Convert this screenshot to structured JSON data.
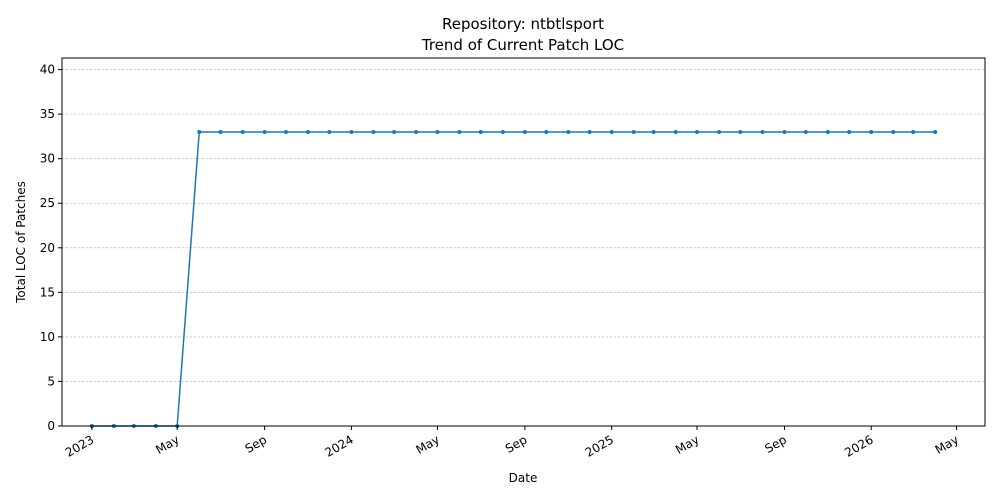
{
  "chart_data": {
    "type": "line",
    "title_line1": "Repository: ntbtlsport",
    "title_line2": "Trend of Current Patch LOC",
    "xlabel": "Date",
    "ylabel": "Total LOC of Patches",
    "ylim": [
      0,
      41.3
    ],
    "y_ticks": [
      0,
      5,
      10,
      15,
      20,
      25,
      30,
      35,
      40
    ],
    "grid": "y-dashed",
    "x_ticks": [
      {
        "date": "2023-01-01",
        "label": "2023"
      },
      {
        "date": "2023-05-01",
        "label": "May"
      },
      {
        "date": "2023-09-01",
        "label": "Sep"
      },
      {
        "date": "2024-01-01",
        "label": "2024"
      },
      {
        "date": "2024-05-01",
        "label": "May"
      },
      {
        "date": "2024-09-01",
        "label": "Sep"
      },
      {
        "date": "2025-01-01",
        "label": "2025"
      },
      {
        "date": "2025-05-01",
        "label": "May"
      },
      {
        "date": "2025-09-01",
        "label": "Sep"
      },
      {
        "date": "2026-01-01",
        "label": "2026"
      },
      {
        "date": "2026-05-01",
        "label": "May"
      }
    ],
    "xlim": [
      "2022-11-20",
      "2026-06-10"
    ],
    "series": [
      {
        "color": "#1f77b4",
        "points": [
          {
            "x": "2023-01-01",
            "y": 0
          },
          {
            "x": "2023-02-01",
            "y": 0
          },
          {
            "x": "2023-03-01",
            "y": 0
          },
          {
            "x": "2023-04-01",
            "y": 0
          },
          {
            "x": "2023-05-01",
            "y": 0
          },
          {
            "x": "2023-06-01",
            "y": 33
          },
          {
            "x": "2023-07-01",
            "y": 33
          },
          {
            "x": "2023-08-01",
            "y": 33
          },
          {
            "x": "2023-09-01",
            "y": 33
          },
          {
            "x": "2023-10-01",
            "y": 33
          },
          {
            "x": "2023-11-01",
            "y": 33
          },
          {
            "x": "2023-12-01",
            "y": 33
          },
          {
            "x": "2024-01-01",
            "y": 33
          },
          {
            "x": "2024-02-01",
            "y": 33
          },
          {
            "x": "2024-03-01",
            "y": 33
          },
          {
            "x": "2024-04-01",
            "y": 33
          },
          {
            "x": "2024-05-01",
            "y": 33
          },
          {
            "x": "2024-06-01",
            "y": 33
          },
          {
            "x": "2024-07-01",
            "y": 33
          },
          {
            "x": "2024-08-01",
            "y": 33
          },
          {
            "x": "2024-09-01",
            "y": 33
          },
          {
            "x": "2024-10-01",
            "y": 33
          },
          {
            "x": "2024-11-01",
            "y": 33
          },
          {
            "x": "2024-12-01",
            "y": 33
          },
          {
            "x": "2025-01-01",
            "y": 33
          },
          {
            "x": "2025-02-01",
            "y": 33
          },
          {
            "x": "2025-03-01",
            "y": 33
          },
          {
            "x": "2025-04-01",
            "y": 33
          },
          {
            "x": "2025-05-01",
            "y": 33
          },
          {
            "x": "2025-06-01",
            "y": 33
          },
          {
            "x": "2025-07-01",
            "y": 33
          },
          {
            "x": "2025-08-01",
            "y": 33
          },
          {
            "x": "2025-09-01",
            "y": 33
          },
          {
            "x": "2025-10-01",
            "y": 33
          },
          {
            "x": "2025-11-01",
            "y": 33
          },
          {
            "x": "2025-12-01",
            "y": 33
          },
          {
            "x": "2026-01-01",
            "y": 33
          },
          {
            "x": "2026-02-01",
            "y": 33
          },
          {
            "x": "2026-03-01",
            "y": 33
          },
          {
            "x": "2026-04-01",
            "y": 33
          }
        ]
      }
    ]
  }
}
